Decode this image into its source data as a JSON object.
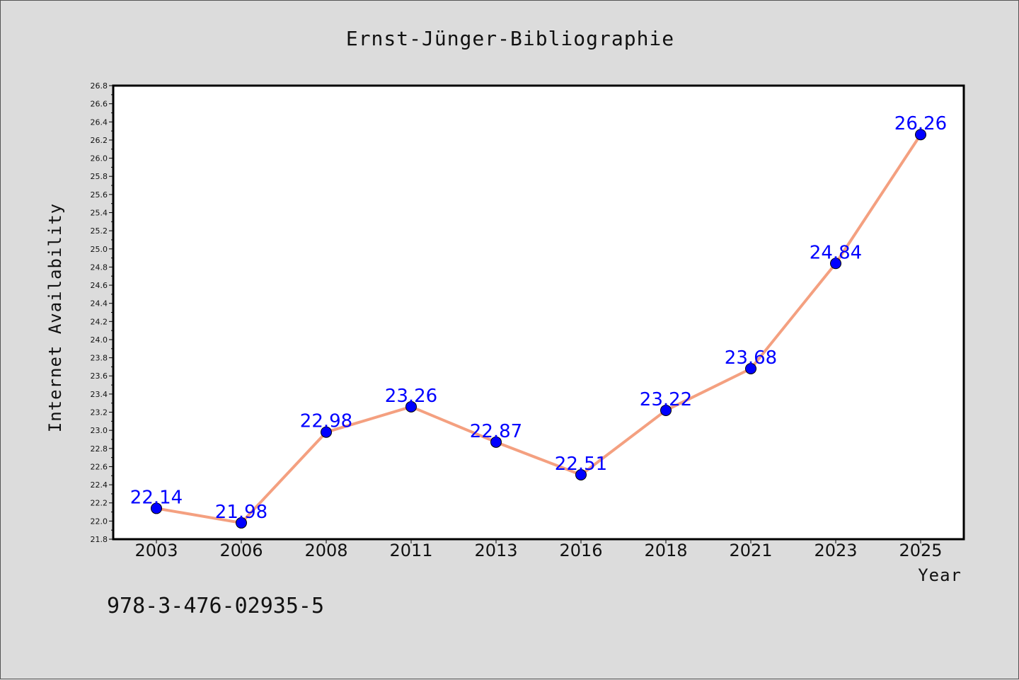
{
  "chart_data": {
    "type": "line",
    "title": "Ernst-Jünger-Bibliographie",
    "xlabel": "Year",
    "ylabel": "Internet Availability",
    "categories": [
      "2003",
      "2006",
      "2008",
      "2011",
      "2013",
      "2016",
      "2018",
      "2021",
      "2023",
      "2025"
    ],
    "series": [
      {
        "values": [
          22.14,
          21.98,
          22.98,
          23.26,
          22.87,
          22.51,
          23.22,
          23.68,
          24.84,
          26.26
        ],
        "labels": [
          "22.14",
          "21.98",
          "22.98",
          "23.26",
          "22.87",
          "22.51",
          "23.22",
          "23.68",
          "24.84",
          "26.26"
        ],
        "line_color": "#f4a080",
        "marker_color": "#0000ff"
      }
    ],
    "ylim": [
      21.8,
      26.8
    ],
    "yticks": [
      "21.8",
      "22.0",
      "22.2",
      "22.4",
      "22.6",
      "22.8",
      "23.0",
      "23.2",
      "23.4",
      "23.6",
      "23.8",
      "24.0",
      "24.2",
      "24.4",
      "24.6",
      "24.8",
      "25.0",
      "25.2",
      "25.4",
      "25.6",
      "25.8",
      "26.0",
      "26.2",
      "26.4",
      "26.6",
      "26.8"
    ],
    "grid": false,
    "label_color": "#0000ff",
    "background": "#dcdcdc",
    "plot_background": "#ffffff"
  },
  "footer": {
    "isbn": "978-3-476-02935-5"
  }
}
